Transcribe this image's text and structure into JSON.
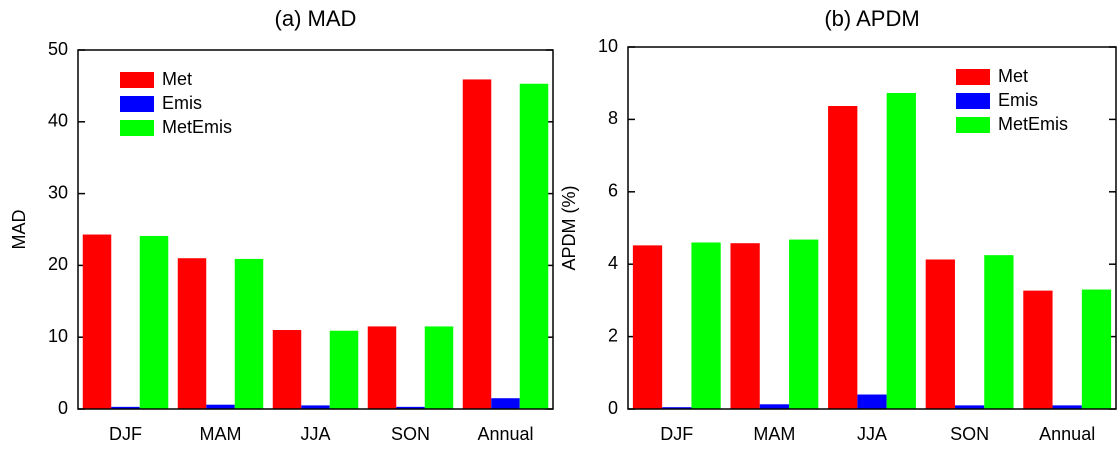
{
  "chart_data": [
    {
      "type": "bar",
      "title": "(a) MAD",
      "y_label": "MAD",
      "categories": [
        "DJF",
        "MAM",
        "JJA",
        "SON",
        "Annual"
      ],
      "series": [
        {
          "name": "Met",
          "color": "#ff0000",
          "values": [
            24.3,
            21.0,
            11.0,
            11.5,
            45.9
          ]
        },
        {
          "name": "Emis",
          "color": "#0000ff",
          "values": [
            0.3,
            0.6,
            0.5,
            0.3,
            1.5
          ]
        },
        {
          "name": "MetEmis",
          "color": "#00ff00",
          "values": [
            24.1,
            20.9,
            10.9,
            11.5,
            45.3
          ]
        }
      ],
      "ylim": [
        0,
        50
      ],
      "yticks": [
        0,
        10,
        20,
        30,
        40,
        50
      ],
      "legend": "upper left"
    },
    {
      "type": "bar",
      "title": "(b) APDM",
      "y_label": "APDM (%)",
      "categories": [
        "DJF",
        "MAM",
        "JJA",
        "SON",
        "Annual"
      ],
      "series": [
        {
          "name": "Met",
          "color": "#ff0000",
          "values": [
            4.52,
            4.58,
            8.37,
            4.13,
            3.27
          ]
        },
        {
          "name": "Emis",
          "color": "#0000ff",
          "values": [
            0.05,
            0.13,
            0.4,
            0.1,
            0.1
          ]
        },
        {
          "name": "MetEmis",
          "color": "#00ff00",
          "values": [
            4.6,
            4.68,
            8.73,
            4.25,
            3.3
          ]
        }
      ],
      "ylim": [
        0,
        10
      ],
      "yticks": [
        0,
        2,
        4,
        6,
        8,
        10
      ],
      "legend": "upper right"
    }
  ]
}
